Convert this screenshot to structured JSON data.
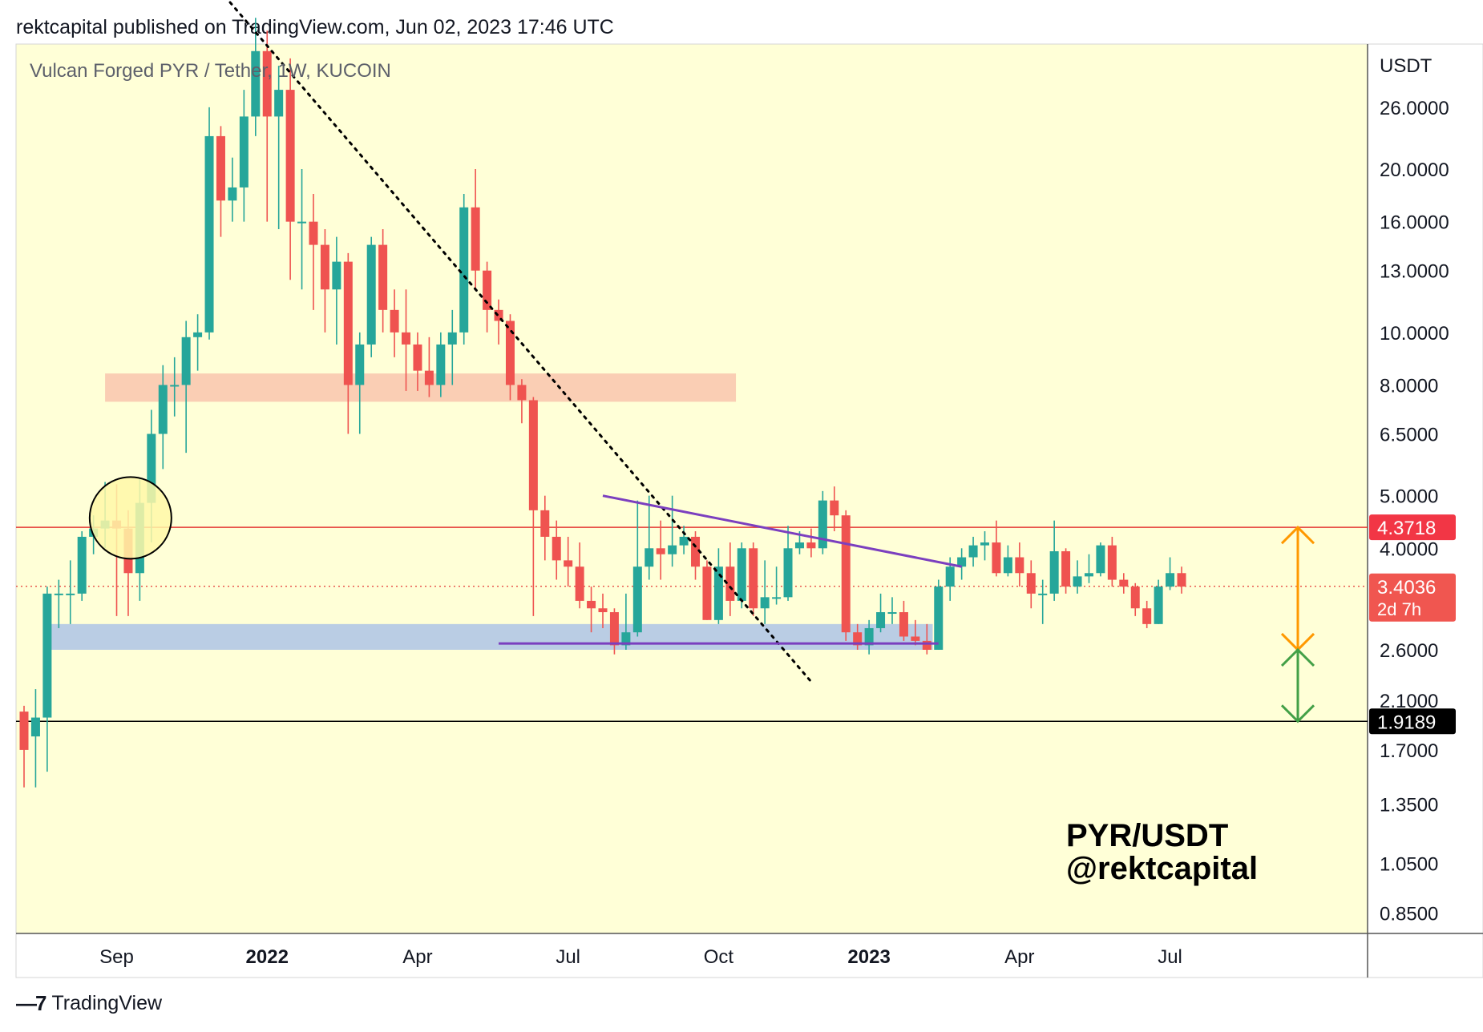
{
  "header": {
    "published": "rektcapital published on TradingView.com, Jun 02, 2023 17:46 UTC"
  },
  "footer": {
    "logo_icon": "tradingview-logo-icon",
    "brand": "TradingView"
  },
  "colors": {
    "background": "#ffffd7",
    "up": "#26a69a",
    "down": "#ef5350",
    "resistance_band": "#f9c9b0",
    "support_band": "#b3c8e6",
    "triangle": "#7b3fbf",
    "resistance_line": "#e53935",
    "orange_arrow": "#ff9800",
    "green_arrow": "#43a047"
  },
  "chart_data": {
    "type": "candlestick",
    "title": "Vulcan Forged PYR / Tether, 1W, KUCOIN",
    "ylabel": "USDT",
    "y_scale": "log",
    "ylim": [
      0.78,
      34
    ],
    "x_ticks": [
      {
        "label": "Sep",
        "week": 8,
        "bold": false
      },
      {
        "label": "2022",
        "week": 21,
        "bold": true
      },
      {
        "label": "Apr",
        "week": 34,
        "bold": false
      },
      {
        "label": "Jul",
        "week": 47,
        "bold": false
      },
      {
        "label": "Oct",
        "week": 60,
        "bold": false
      },
      {
        "label": "2023",
        "week": 73,
        "bold": true
      },
      {
        "label": "Apr",
        "week": 86,
        "bold": false
      },
      {
        "label": "Jul",
        "week": 99,
        "bold": false
      }
    ],
    "y_ticks": [
      "26.0000",
      "20.0000",
      "16.0000",
      "13.0000",
      "10.0000",
      "8.0000",
      "6.5000",
      "5.0000",
      "4.0000",
      "2.6000",
      "2.1000",
      "1.7000",
      "1.3500",
      "1.0500",
      "0.8500"
    ],
    "candles": [
      [
        2.0,
        1.7,
        2.05,
        1.45
      ],
      [
        1.8,
        1.95,
        2.2,
        1.45
      ],
      [
        1.95,
        3.3,
        3.4,
        1.55
      ],
      [
        3.3,
        3.3,
        3.5,
        2.85
      ],
      [
        3.3,
        3.3,
        3.8,
        2.9
      ],
      [
        3.3,
        4.2,
        4.3,
        3.2
      ],
      [
        4.2,
        4.35,
        4.6,
        3.9
      ],
      [
        4.35,
        4.5,
        5.3,
        4.0
      ],
      [
        4.5,
        4.35,
        5.25,
        3.0
      ],
      [
        4.35,
        3.6,
        4.7,
        3.0
      ],
      [
        3.6,
        4.85,
        5.4,
        3.2
      ],
      [
        4.85,
        6.5,
        7.2,
        4.1
      ],
      [
        6.5,
        8.0,
        8.7,
        5.6
      ],
      [
        8.0,
        8.0,
        9.0,
        7.0
      ],
      [
        8.0,
        9.8,
        10.5,
        6.0
      ],
      [
        9.8,
        10.0,
        10.8,
        8.5
      ],
      [
        10.0,
        23.0,
        26.0,
        9.7
      ],
      [
        23.0,
        17.5,
        24.0,
        15.0
      ],
      [
        17.5,
        18.5,
        21.0,
        16.0
      ],
      [
        18.5,
        25.0,
        28.0,
        16.0
      ],
      [
        25.0,
        33.0,
        38.0,
        23.0
      ],
      [
        33.0,
        25.0,
        36.0,
        16.0
      ],
      [
        25.0,
        28.0,
        31.0,
        15.5
      ],
      [
        28.0,
        16.0,
        32.0,
        12.5
      ],
      [
        16.0,
        16.0,
        20.0,
        12.0
      ],
      [
        16.0,
        14.5,
        18.0,
        11.0
      ],
      [
        14.5,
        12.0,
        15.5,
        10.0
      ],
      [
        12.0,
        13.5,
        15.0,
        9.5
      ],
      [
        13.5,
        8.0,
        14.0,
        6.5
      ],
      [
        8.0,
        9.5,
        10.0,
        6.5
      ],
      [
        9.5,
        14.5,
        15.0,
        9.0
      ],
      [
        14.5,
        11.0,
        15.5,
        10.0
      ],
      [
        11.0,
        10.0,
        12.0,
        9.0
      ],
      [
        10.0,
        9.5,
        12.0,
        7.8
      ],
      [
        9.5,
        8.5,
        10.0,
        7.8
      ],
      [
        8.5,
        8.0,
        9.8,
        7.6
      ],
      [
        8.0,
        9.5,
        10.0,
        7.6
      ],
      [
        9.5,
        10.0,
        11.0,
        8.0
      ],
      [
        10.0,
        17.0,
        18.0,
        9.5
      ],
      [
        17.0,
        13.0,
        20.0,
        12.0
      ],
      [
        13.0,
        11.0,
        13.5,
        10.0
      ],
      [
        11.0,
        10.5,
        11.5,
        9.5
      ],
      [
        10.5,
        8.0,
        10.8,
        7.5
      ],
      [
        8.0,
        7.5,
        8.2,
        6.8
      ],
      [
        7.5,
        4.7,
        7.6,
        3.0
      ],
      [
        4.7,
        4.2,
        5.0,
        3.8
      ],
      [
        4.2,
        3.8,
        4.5,
        3.5
      ],
      [
        3.8,
        3.7,
        4.2,
        3.4
      ],
      [
        3.7,
        3.2,
        4.1,
        3.1
      ],
      [
        3.2,
        3.1,
        3.4,
        2.8
      ],
      [
        3.1,
        3.05,
        3.3,
        2.85
      ],
      [
        3.05,
        2.65,
        3.1,
        2.55
      ],
      [
        2.65,
        2.8,
        3.3,
        2.6
      ],
      [
        2.8,
        3.7,
        4.9,
        2.75
      ],
      [
        3.7,
        4.0,
        5.0,
        3.5
      ],
      [
        4.0,
        3.9,
        4.5,
        3.5
      ],
      [
        3.9,
        4.05,
        5.0,
        3.7
      ],
      [
        4.05,
        4.2,
        4.4,
        3.9
      ],
      [
        4.2,
        3.7,
        4.3,
        3.5
      ],
      [
        3.7,
        2.95,
        3.8,
        2.95
      ],
      [
        2.95,
        3.7,
        4.0,
        2.9
      ],
      [
        3.7,
        3.2,
        4.1,
        3.0
      ],
      [
        3.2,
        4.0,
        4.1,
        3.1
      ],
      [
        4.0,
        3.1,
        4.1,
        3.0
      ],
      [
        3.1,
        3.25,
        3.8,
        2.9
      ],
      [
        3.25,
        3.25,
        3.7,
        3.15
      ],
      [
        3.25,
        4.0,
        4.4,
        3.2
      ],
      [
        4.0,
        4.1,
        4.3,
        3.9
      ],
      [
        4.1,
        4.0,
        4.35,
        3.85
      ],
      [
        4.0,
        4.9,
        5.1,
        3.9
      ],
      [
        4.9,
        4.6,
        5.2,
        4.3
      ],
      [
        4.6,
        2.8,
        4.7,
        2.7
      ],
      [
        2.8,
        2.65,
        2.9,
        2.6
      ],
      [
        2.65,
        2.85,
        2.95,
        2.55
      ],
      [
        2.85,
        3.05,
        3.3,
        2.8
      ],
      [
        3.05,
        3.05,
        3.25,
        2.9
      ],
      [
        3.05,
        2.75,
        3.2,
        2.7
      ],
      [
        2.75,
        2.7,
        2.95,
        2.65
      ],
      [
        2.7,
        2.6,
        2.9,
        2.55
      ],
      [
        2.6,
        3.4,
        3.5,
        2.6
      ],
      [
        3.4,
        3.7,
        3.85,
        3.2
      ],
      [
        3.7,
        3.85,
        4.0,
        3.5
      ],
      [
        3.85,
        4.05,
        4.2,
        3.7
      ],
      [
        4.05,
        4.1,
        4.3,
        3.8
      ],
      [
        4.1,
        3.6,
        4.5,
        3.55
      ],
      [
        3.6,
        3.85,
        4.05,
        3.55
      ],
      [
        3.85,
        3.6,
        4.1,
        3.4
      ],
      [
        3.6,
        3.3,
        3.8,
        3.1
      ],
      [
        3.3,
        3.3,
        3.5,
        2.9
      ],
      [
        3.3,
        3.95,
        4.5,
        3.2
      ],
      [
        3.95,
        3.4,
        4.0,
        3.3
      ],
      [
        3.4,
        3.55,
        3.8,
        3.3
      ],
      [
        3.55,
        3.6,
        3.9,
        3.45
      ],
      [
        3.6,
        4.05,
        4.1,
        3.55
      ],
      [
        4.05,
        3.5,
        4.2,
        3.4
      ],
      [
        3.5,
        3.4,
        3.6,
        3.3
      ],
      [
        3.4,
        3.1,
        3.45,
        3.0
      ],
      [
        3.1,
        2.9,
        3.2,
        2.85
      ],
      [
        2.9,
        3.4,
        3.5,
        2.9
      ],
      [
        3.4,
        3.6,
        3.85,
        3.35
      ],
      [
        3.6,
        3.4,
        3.7,
        3.3
      ]
    ],
    "price_labels": [
      {
        "text": "4.3718",
        "value": 4.3718,
        "color": "#f23645"
      },
      {
        "text": "3.4036",
        "value": 3.4036,
        "color": "#f05650",
        "sub": "2d 7h"
      },
      {
        "text": "1.9189",
        "value": 1.9189,
        "color": "#000000"
      }
    ],
    "zones": [
      {
        "name": "resistance-band",
        "from_week": 7,
        "to_week": 61.5,
        "low": 7.45,
        "high": 8.4
      },
      {
        "name": "support-band",
        "from_week": 2,
        "to_week": 78.5,
        "low": 2.6,
        "high": 2.9
      }
    ],
    "lines": [
      {
        "name": "downtrend-dotted-line",
        "w1": 16,
        "p1": 45,
        "w2": 68,
        "p2": 2.27,
        "style": "dotted"
      },
      {
        "name": "triangle-upper-line",
        "w1": 50,
        "p1": 5.0,
        "w2": 81,
        "p2": 3.7,
        "style": "solid"
      },
      {
        "name": "triangle-lower-line",
        "w1": 41,
        "p1": 2.67,
        "w2": 79,
        "p2": 2.67,
        "style": "solid"
      }
    ],
    "annotations": {
      "pair": "PYR/USDT",
      "handle": "@rektcapital",
      "circle_week": 9.2,
      "circle_price": 4.55
    }
  }
}
